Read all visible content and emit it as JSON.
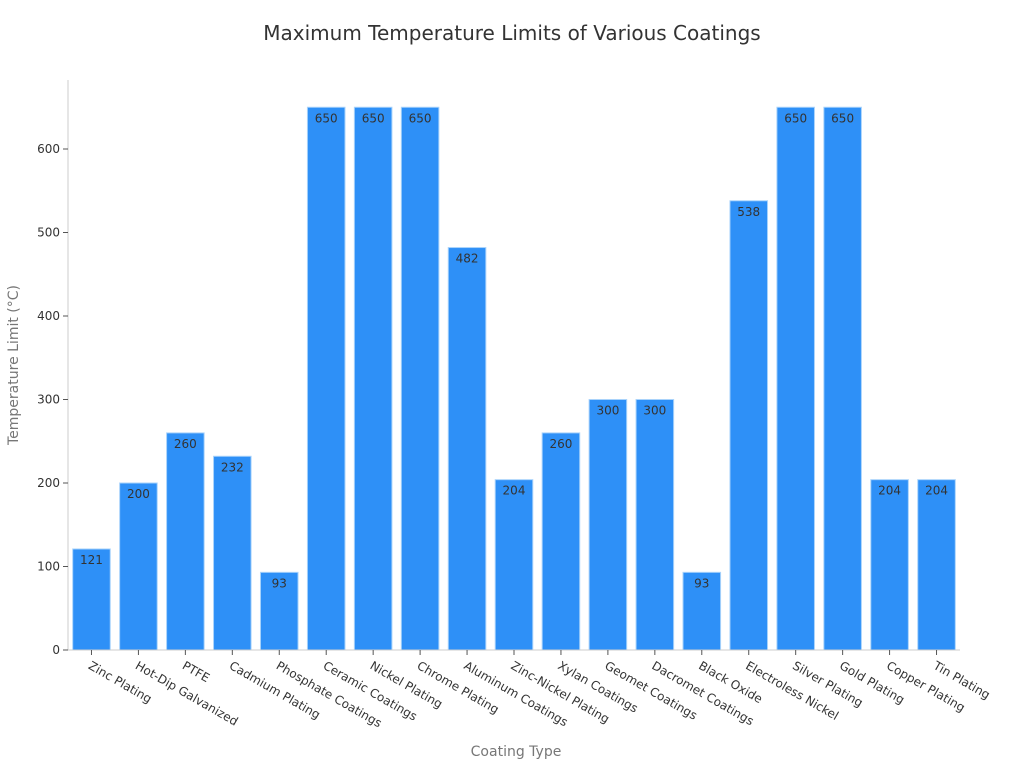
{
  "chart_data": {
    "type": "bar",
    "title": "Maximum Temperature Limits of Various Coatings",
    "xlabel": "Coating Type",
    "ylabel": "Temperature Limit (°C)",
    "categories": [
      "Zinc Plating",
      "Hot-Dip Galvanized",
      "PTFE",
      "Cadmium Plating",
      "Phosphate Coatings",
      "Ceramic Coatings",
      "Nickel Plating",
      "Chrome Plating",
      "Aluminum Coatings",
      "Zinc-Nickel Plating",
      "Xylan Coatings",
      "Geomet Coatings",
      "Dacromet Coatings",
      "Black Oxide",
      "Electroless Nickel",
      "Silver Plating",
      "Gold Plating",
      "Copper Plating",
      "Tin Plating"
    ],
    "values": [
      121,
      200,
      260,
      232,
      93,
      650,
      650,
      650,
      482,
      204,
      260,
      300,
      300,
      93,
      538,
      650,
      650,
      204,
      204
    ],
    "yticks": [
      0,
      100,
      200,
      300,
      400,
      500,
      600
    ],
    "ylim": [
      0,
      683
    ],
    "grid": false,
    "legend": null,
    "bar_color": "#2e90f7",
    "bar_edge_color": "#a9d3fb"
  }
}
